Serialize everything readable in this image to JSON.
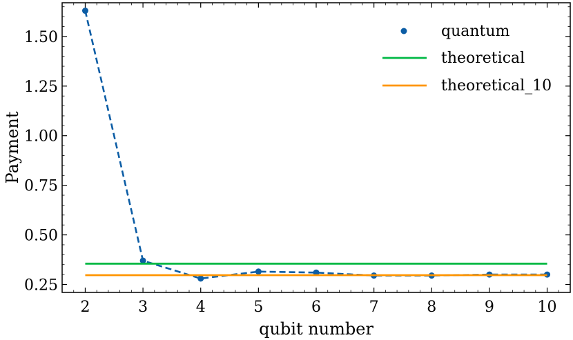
{
  "chart_data": {
    "type": "line",
    "title": "",
    "xlabel": "qubit number",
    "ylabel": "Payment",
    "xlim": [
      1.6,
      10.4
    ],
    "ylim": [
      0.21,
      1.67
    ],
    "x_ticks": [
      2,
      3,
      4,
      5,
      6,
      7,
      8,
      9,
      10
    ],
    "x_tick_labels": [
      "2",
      "3",
      "4",
      "5",
      "6",
      "7",
      "8",
      "9",
      "10"
    ],
    "y_ticks": [
      0.25,
      0.5,
      0.75,
      1.0,
      1.25,
      1.5
    ],
    "y_tick_labels": [
      "0.25",
      "0.50",
      "0.75",
      "1.00",
      "1.25",
      "1.50"
    ],
    "grid": false,
    "legend_position": "top-right",
    "series": [
      {
        "name": "quantum",
        "kind": "scatter-dashed-line",
        "color": "#0C5DA5",
        "x": [
          2,
          3,
          4,
          5,
          6,
          7,
          8,
          9,
          10
        ],
        "y": [
          1.63,
          0.37,
          0.28,
          0.315,
          0.31,
          0.295,
          0.295,
          0.3,
          0.3
        ]
      },
      {
        "name": "theoretical",
        "kind": "line",
        "color": "#00B945",
        "x": [
          2,
          10
        ],
        "y": [
          0.355,
          0.355
        ]
      },
      {
        "name": "theoretical_10",
        "kind": "line",
        "color": "#FF9500",
        "x": [
          2,
          10
        ],
        "y": [
          0.297,
          0.297
        ]
      }
    ]
  }
}
